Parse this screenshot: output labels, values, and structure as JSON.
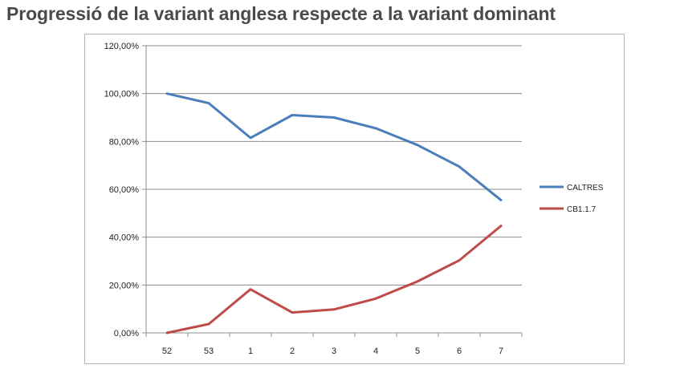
{
  "chart_data": {
    "type": "line",
    "title": "Progressió de la variant anglesa respecte a la variant dominant",
    "categories": [
      "52",
      "53",
      "1",
      "2",
      "3",
      "4",
      "5",
      "6",
      "7"
    ],
    "y_ticks": [
      "0,00%",
      "20,00%",
      "40,00%",
      "60,00%",
      "80,00%",
      "100,00%",
      "120,00%"
    ],
    "ylim": [
      0,
      120
    ],
    "grid": true,
    "legend_position": "right",
    "series": [
      {
        "name": "CALTRES",
        "color": "#4a7ebb",
        "values": [
          100,
          96,
          81.5,
          91,
          90,
          85.5,
          78.5,
          69.5,
          55.5
        ]
      },
      {
        "name": "CB1.1.7",
        "color": "#be4b48",
        "values": [
          0,
          3.7,
          18.2,
          8.5,
          9.8,
          14.3,
          21.5,
          30.3,
          44.7
        ]
      }
    ]
  }
}
